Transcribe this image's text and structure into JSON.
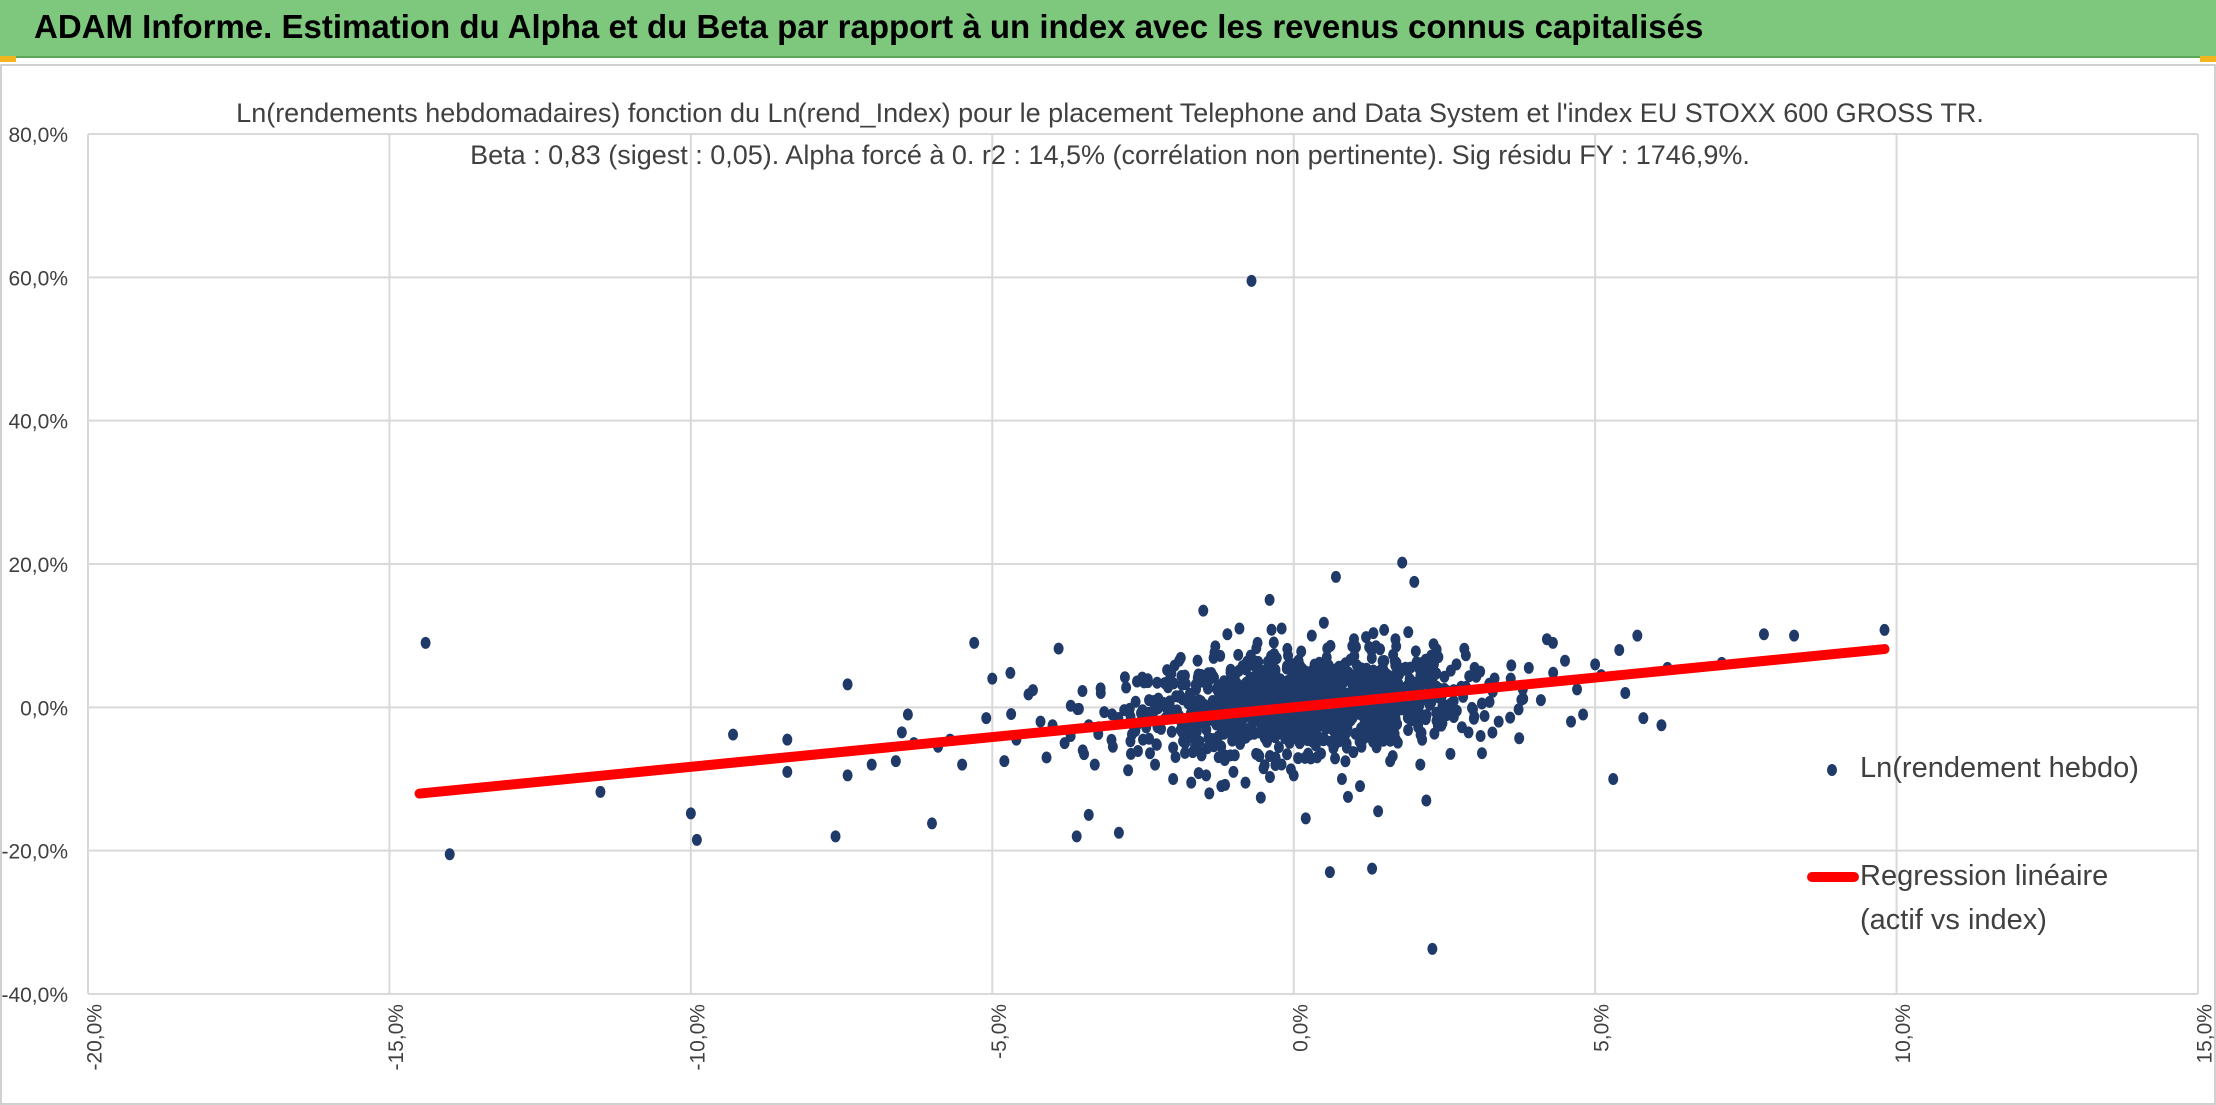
{
  "banner": {
    "title": "ADAM Informe. Estimation du Alpha et du Beta par rapport à un index avec les revenus connus capitalisés",
    "color": "#7ec87e",
    "corner_color": "#f2b51d"
  },
  "chart_data": {
    "type": "scatter",
    "title": "Ln(rendements hebdomadaires) fonction du Ln(rend_Index) pour le placement Telephone and Data System et l'index EU STOXX 600 GROSS TR.",
    "subtitle": "Beta : 0,83 (sigest : 0,05). Alpha forcé à 0. r2 : 14,5% (corrélation non pertinente). Sig résidu FY : 1746,9%.",
    "xlabel": "",
    "ylabel": "",
    "xlim": [
      -20,
      15
    ],
    "ylim": [
      -40,
      80
    ],
    "x_ticks": [
      -20,
      -15,
      -10,
      -5,
      0,
      5,
      10,
      15
    ],
    "x_tick_labels": [
      "-20,0%",
      "-15,0%",
      "-10,0%",
      "-5,0%",
      "0,0%",
      "5,0%",
      "10,0%",
      "15,0%"
    ],
    "y_ticks": [
      -40,
      -20,
      0,
      20,
      40,
      60,
      80
    ],
    "y_tick_labels": [
      "-40,0%",
      "-20,0%",
      "0,0%",
      "20,0%",
      "40,0%",
      "60,0%",
      "80,0%"
    ],
    "grid": true,
    "legend_position": "right",
    "series": [
      {
        "name": "Ln(rendement hebdo)",
        "kind": "scatter",
        "color": "#1f3a68",
        "points": [
          [
            -14.4,
            9.0
          ],
          [
            -14.0,
            -20.5
          ],
          [
            -11.5,
            -11.8
          ],
          [
            -10.0,
            -14.8
          ],
          [
            -9.9,
            -18.5
          ],
          [
            -9.3,
            -3.8
          ],
          [
            -8.4,
            -4.5
          ],
          [
            -8.4,
            -9.0
          ],
          [
            -7.6,
            -18.0
          ],
          [
            -7.4,
            3.2
          ],
          [
            -7.4,
            -9.5
          ],
          [
            -7.0,
            -8.0
          ],
          [
            -6.6,
            -7.5
          ],
          [
            -6.5,
            -3.5
          ],
          [
            -6.4,
            -1.0
          ],
          [
            -6.3,
            -5.0
          ],
          [
            -6.0,
            -16.2
          ],
          [
            -5.9,
            -5.5
          ],
          [
            -5.7,
            -4.5
          ],
          [
            -5.5,
            -8.0
          ],
          [
            -5.3,
            9.0
          ],
          [
            -5.1,
            -1.5
          ],
          [
            -5.0,
            4.0
          ],
          [
            -4.8,
            -7.5
          ],
          [
            -4.7,
            4.8
          ],
          [
            -4.6,
            -4.5
          ],
          [
            -4.4,
            1.8
          ],
          [
            -4.2,
            -2.0
          ],
          [
            -4.1,
            -7.0
          ],
          [
            -4.0,
            -2.5
          ],
          [
            -3.9,
            8.2
          ],
          [
            -3.8,
            -5.0
          ],
          [
            -3.7,
            -4.0
          ],
          [
            -3.6,
            -18.0
          ],
          [
            -3.5,
            -6.0
          ],
          [
            -3.4,
            -2.5
          ],
          [
            -3.4,
            -15.0
          ],
          [
            -3.3,
            -8.0
          ],
          [
            -3.2,
            2.0
          ],
          [
            -3.0,
            -5.5
          ],
          [
            -2.9,
            -17.5
          ],
          [
            -2.8,
            4.2
          ],
          [
            -2.7,
            -6.5
          ],
          [
            -2.6,
            3.6
          ],
          [
            -2.5,
            -4.5
          ],
          [
            -2.4,
            1.0
          ],
          [
            -2.3,
            -8.0
          ],
          [
            -2.2,
            -3.0
          ],
          [
            -2.1,
            5.2
          ],
          [
            -2.0,
            -10.0
          ],
          [
            -1.9,
            6.5
          ],
          [
            -1.8,
            -5.0
          ],
          [
            -1.7,
            -10.5
          ],
          [
            -1.6,
            3.5
          ],
          [
            -1.5,
            13.5
          ],
          [
            -1.4,
            -12.0
          ],
          [
            -1.3,
            8.5
          ],
          [
            -1.2,
            -11.0
          ],
          [
            -1.1,
            10.2
          ],
          [
            -1.0,
            -9.0
          ],
          [
            -0.9,
            11.0
          ],
          [
            -0.8,
            -10.5
          ],
          [
            -0.7,
            59.5
          ],
          [
            -0.6,
            9.0
          ],
          [
            -0.5,
            -8.5
          ],
          [
            -0.4,
            15.0
          ],
          [
            -0.3,
            -7.0
          ],
          [
            -0.2,
            11.0
          ],
          [
            0.0,
            -9.5
          ],
          [
            0.1,
            -5.0
          ],
          [
            0.2,
            -15.5
          ],
          [
            0.3,
            10.0
          ],
          [
            0.5,
            11.8
          ],
          [
            0.6,
            -23.0
          ],
          [
            0.7,
            18.2
          ],
          [
            0.8,
            -10.0
          ],
          [
            0.9,
            -12.5
          ],
          [
            1.0,
            9.5
          ],
          [
            1.1,
            -11.0
          ],
          [
            1.2,
            9.8
          ],
          [
            1.3,
            -22.5
          ],
          [
            1.4,
            -14.5
          ],
          [
            1.5,
            10.8
          ],
          [
            1.6,
            -7.5
          ],
          [
            1.7,
            8.5
          ],
          [
            1.8,
            20.2
          ],
          [
            1.9,
            10.5
          ],
          [
            2.0,
            17.5
          ],
          [
            2.1,
            -8.0
          ],
          [
            2.2,
            -13.0
          ],
          [
            2.3,
            -33.7
          ],
          [
            2.4,
            7.0
          ],
          [
            2.6,
            -6.5
          ],
          [
            2.7,
            6.0
          ],
          [
            2.9,
            -3.5
          ],
          [
            3.0,
            5.5
          ],
          [
            3.1,
            -4.0
          ],
          [
            3.3,
            3.0
          ],
          [
            3.4,
            -2.0
          ],
          [
            3.6,
            4.0
          ],
          [
            3.8,
            2.5
          ],
          [
            3.9,
            5.5
          ],
          [
            4.1,
            1.0
          ],
          [
            4.2,
            9.5
          ],
          [
            4.3,
            9.0
          ],
          [
            4.5,
            6.5
          ],
          [
            4.6,
            -2.0
          ],
          [
            4.7,
            2.5
          ],
          [
            4.8,
            -1.0
          ],
          [
            5.0,
            6.0
          ],
          [
            5.1,
            4.5
          ],
          [
            5.3,
            -10.0
          ],
          [
            5.4,
            8.0
          ],
          [
            5.5,
            2.0
          ],
          [
            5.7,
            10.0
          ],
          [
            5.8,
            -1.5
          ],
          [
            6.1,
            -2.5
          ],
          [
            6.2,
            5.5
          ],
          [
            7.1,
            6.2
          ],
          [
            7.8,
            10.2
          ],
          [
            8.3,
            10.0
          ],
          [
            9.8,
            10.8
          ]
        ],
        "dense_cloud": {
          "center": [
            0.2,
            0.5
          ],
          "spread": [
            1.3,
            3.2
          ],
          "count": 1300,
          "note": "dense cluster of weekly returns around the origin"
        }
      },
      {
        "name": "Regression linéaire (actif vs index)",
        "kind": "line",
        "color": "#ff0000",
        "slope": 0.83,
        "intercept": 0,
        "x_range": [
          -14.5,
          9.8
        ]
      }
    ]
  },
  "legend": {
    "scatter_label": "Ln(rendement hebdo)",
    "line_label_1": "Regression linéaire",
    "line_label_2": "(actif vs index)"
  }
}
